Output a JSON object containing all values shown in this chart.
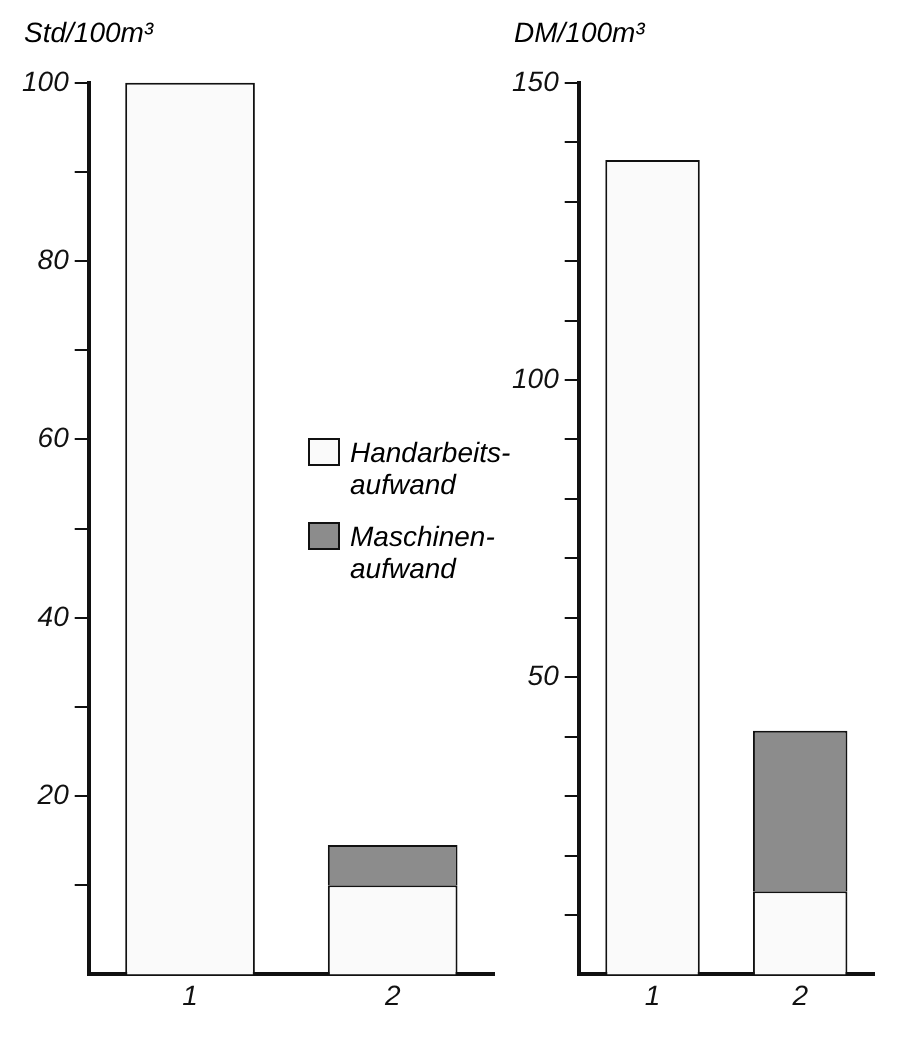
{
  "chart_data": [
    {
      "type": "bar",
      "ylabel": "Std/100m³",
      "categories": [
        "1",
        "2"
      ],
      "stacked": true,
      "legend": "right",
      "grid": false,
      "series": [
        {
          "name": "Handarbeits-aufwand",
          "color": "#fafafa",
          "values": [
            100,
            10
          ]
        },
        {
          "name": "Maschinen-aufwand",
          "color": "#8c8c8c",
          "values": [
            null,
            4.5
          ]
        }
      ],
      "ylim": [
        0,
        100
      ],
      "yticks": [
        {
          "value": 10,
          "label": null
        },
        20,
        {
          "value": 30,
          "label": null
        },
        40,
        {
          "value": 50,
          "label": null
        },
        60,
        {
          "value": 70,
          "label": null
        },
        80,
        {
          "value": 90,
          "label": null
        },
        100
      ]
    },
    {
      "type": "bar",
      "ylabel": "DM/100m³",
      "categories": [
        "1",
        "2"
      ],
      "stacked": true,
      "legend": false,
      "grid": false,
      "series": [
        {
          "color": "#fafafa",
          "values": [
            137,
            14
          ]
        },
        {
          "color": "#8c8c8c",
          "values": [
            null,
            27
          ]
        }
      ],
      "ylim": [
        0,
        150
      ],
      "yticks": [
        {
          "value": 10,
          "label": null
        },
        {
          "value": 20,
          "label": null
        },
        {
          "value": 30,
          "label": null
        },
        {
          "value": 40,
          "label": null
        },
        50,
        {
          "value": 60,
          "label": null
        },
        {
          "value": 70,
          "label": null
        },
        {
          "value": 80,
          "label": null
        },
        {
          "value": 90,
          "label": null
        },
        100,
        {
          "value": 110,
          "label": null
        },
        {
          "value": 120,
          "label": null
        },
        {
          "value": 130,
          "label": null
        },
        {
          "value": 140,
          "label": null
        },
        150
      ]
    }
  ]
}
